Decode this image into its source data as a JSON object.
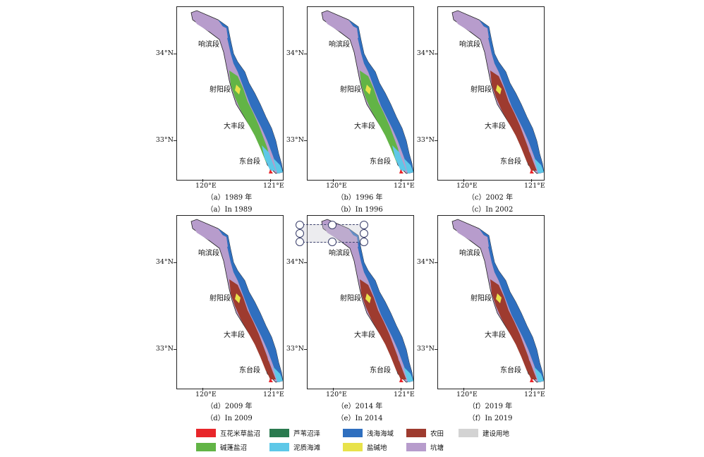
{
  "panels": [
    {
      "caption_cn": "（a）1989 年",
      "caption_en": "（a）In 1989"
    },
    {
      "caption_cn": "（b）1996 年",
      "caption_en": "（b）In 1996"
    },
    {
      "caption_cn": "（c）2002 年",
      "caption_en": "（c）In 2002"
    },
    {
      "caption_cn": "（d）2009 年",
      "caption_en": "（d）In 2009"
    },
    {
      "caption_cn": "（e）2014 年",
      "caption_en": "（e）In 2014"
    },
    {
      "caption_cn": "（f）2019 年",
      "caption_en": "（f）In 2019"
    }
  ],
  "segments": {
    "xiangbin": "响滨段",
    "sheyang": "射阳段",
    "dafeng": "大丰段",
    "dongtai": "东台段"
  },
  "axes": {
    "lat_top": "34°N",
    "lat_bottom": "33°N",
    "lon_left": "120°E",
    "lon_right": "121°E"
  },
  "legend": [
    {
      "label": "互花米草盐沼",
      "color": "#e8262a"
    },
    {
      "label": "芦苇沼泽",
      "color": "#2a7a4f"
    },
    {
      "label": "浅海海域",
      "color": "#2f6fbf"
    },
    {
      "label": "农田",
      "color": "#9e3b2f"
    },
    {
      "label": "建设用地",
      "color": "#d3d3d3"
    },
    {
      "label": "碱蓬盐沼",
      "color": "#62b446"
    },
    {
      "label": "泥质海滩",
      "color": "#5ec8e8"
    },
    {
      "label": "盐碱地",
      "color": "#e8e24a"
    },
    {
      "label": "坑塘",
      "color": "#b79ccc"
    }
  ]
}
